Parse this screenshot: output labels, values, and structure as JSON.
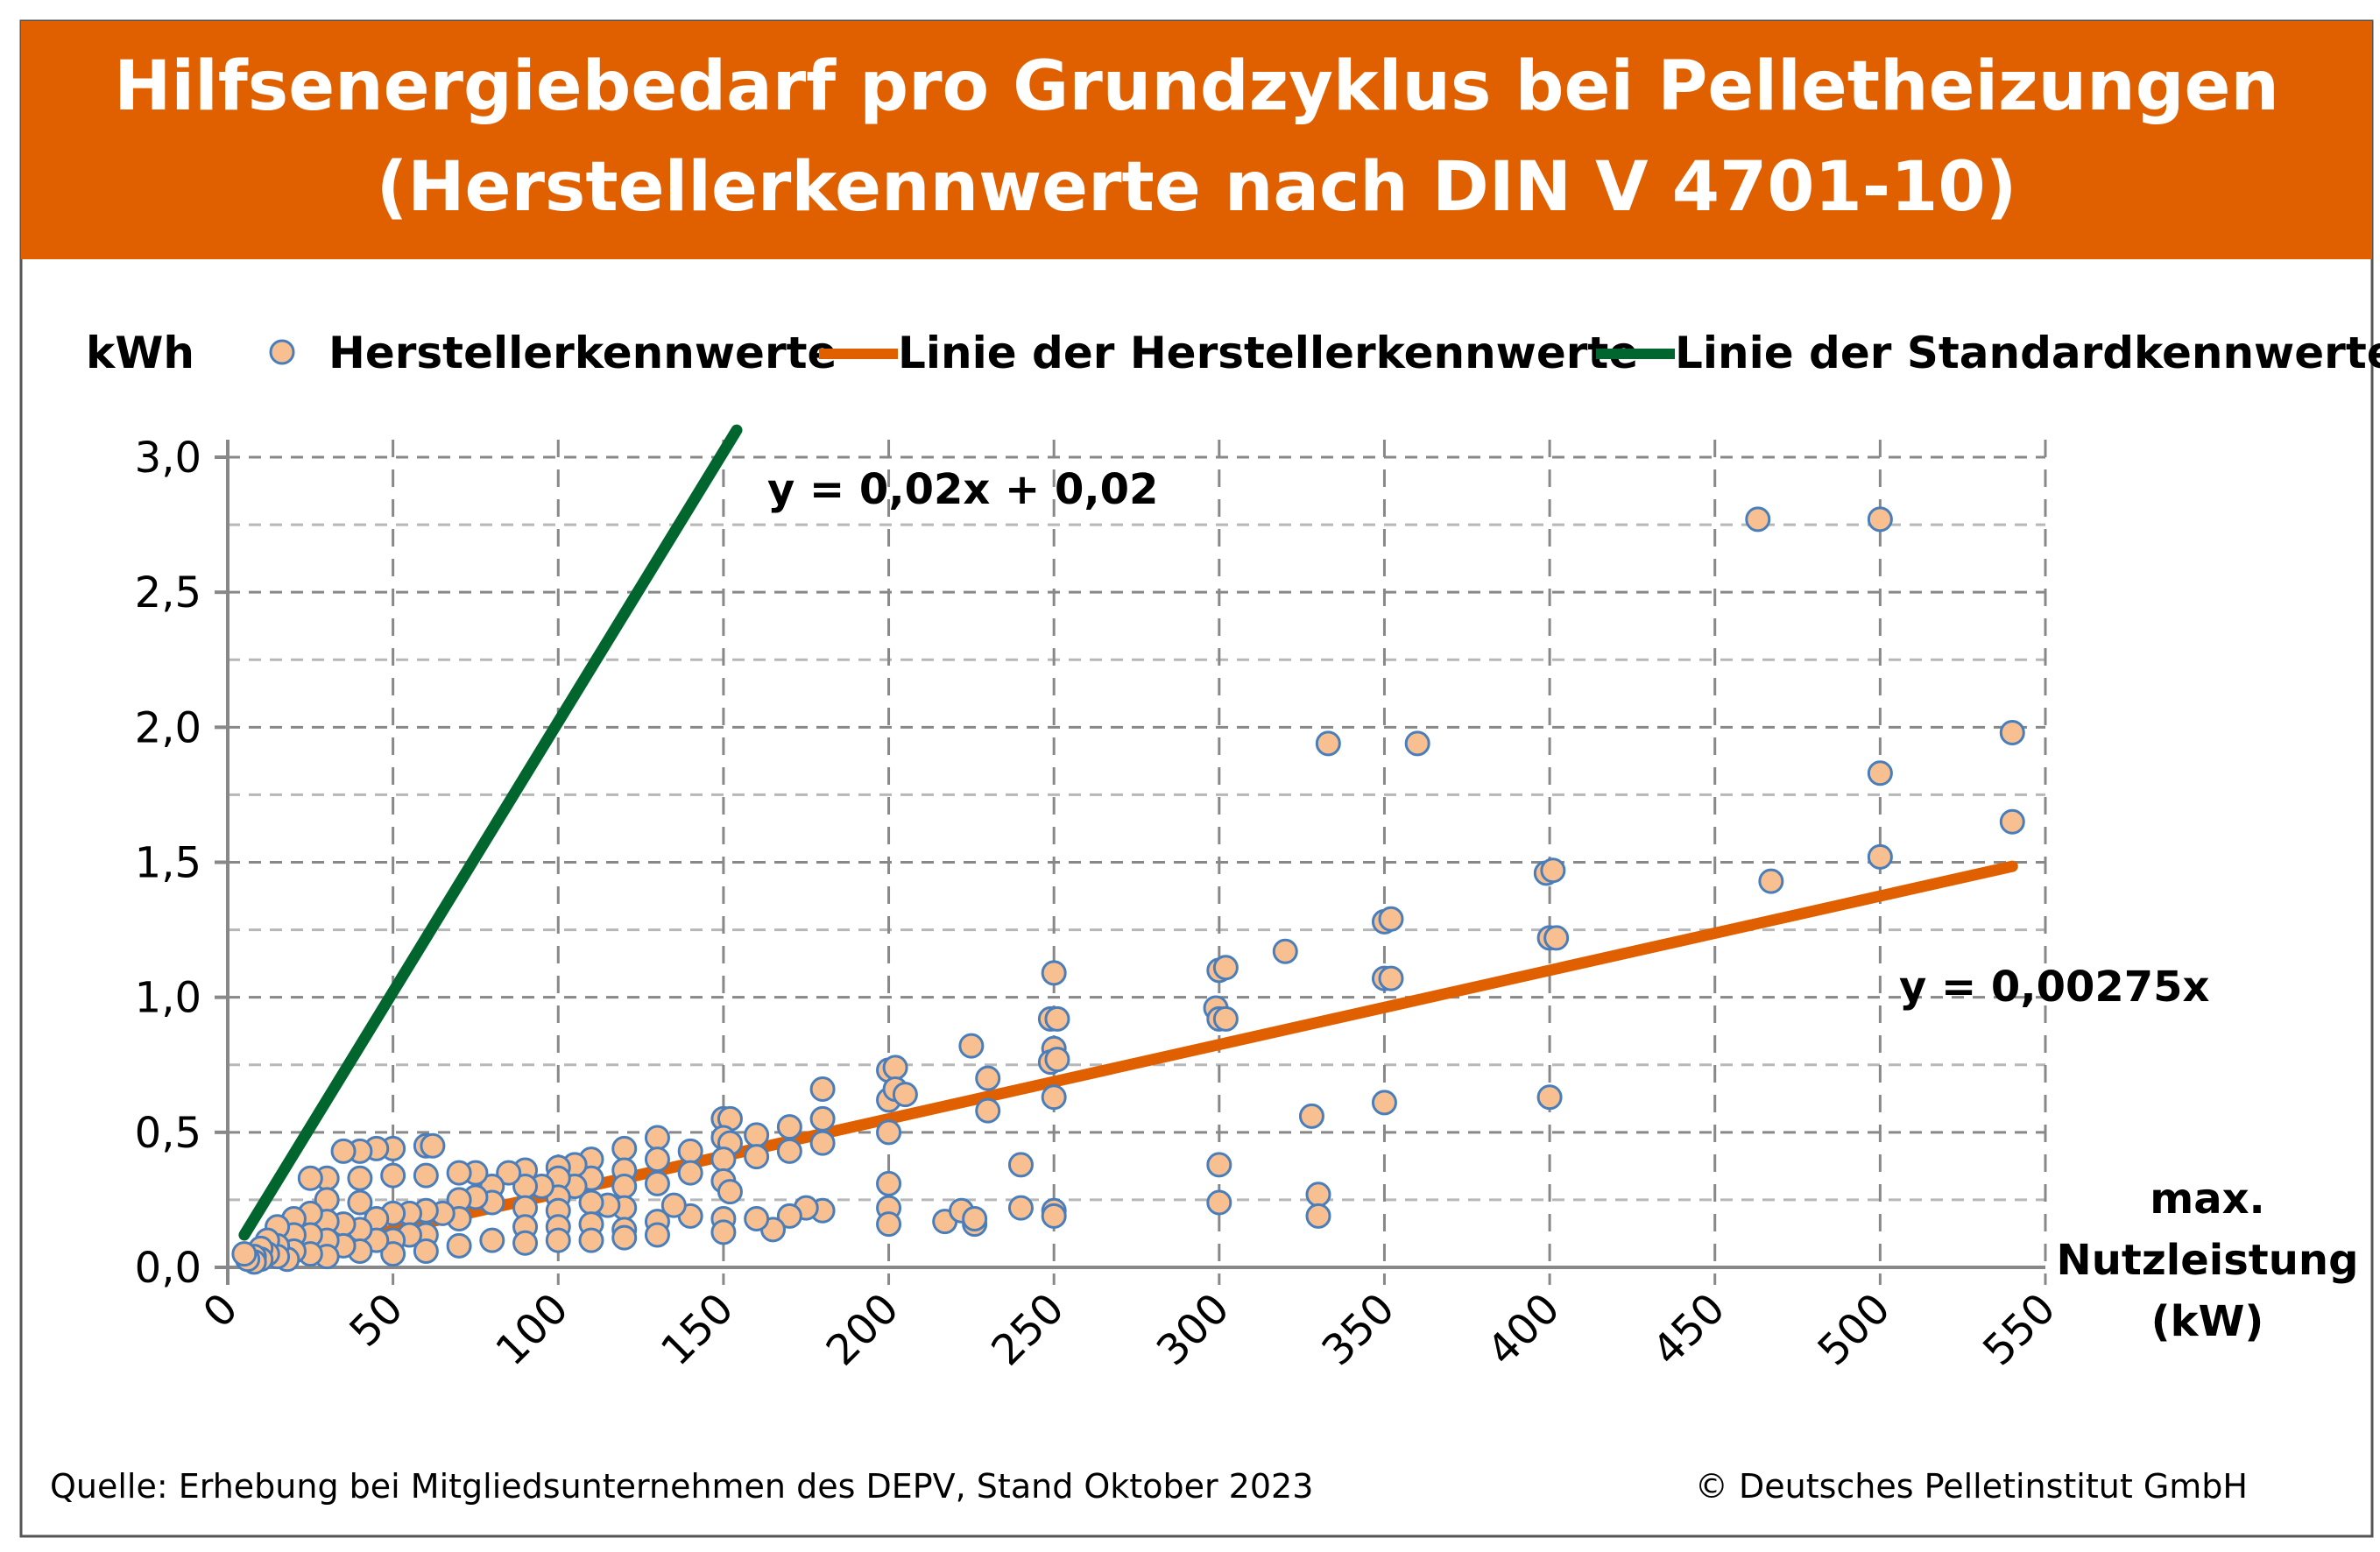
{
  "chart_data": {
    "type": "scatter",
    "title_line1": "Hilfsenergiebedarf pro Grundzyklus bei Pelletheizungen",
    "title_line2": "(Herstellerkennwerte nach DIN V 4701-10)",
    "ylabel": "kWh",
    "xlabel_lines": [
      "max.",
      "Nutzleistung",
      "(kW)"
    ],
    "xlim": [
      0,
      550
    ],
    "ylim": [
      0,
      3.0
    ],
    "x_ticks": [
      0,
      50,
      100,
      150,
      200,
      250,
      300,
      350,
      400,
      450,
      500,
      550
    ],
    "x_tick_labels": [
      "0",
      "50",
      "100",
      "150",
      "200",
      "250",
      "300",
      "350",
      "400",
      "450",
      "500",
      "550"
    ],
    "y_ticks": [
      0,
      0.5,
      1.0,
      1.5,
      2.0,
      2.5,
      3.0
    ],
    "y_tick_labels": [
      "0,0",
      "0,5",
      "1,0",
      "1,5",
      "2,0",
      "2,5",
      "3,0"
    ],
    "grid": true,
    "legend_position": "top",
    "legend": [
      "Herstellerkennwerte",
      "Linie der Herstellerkennwerte",
      "Linie der Standardkennwerte"
    ],
    "colors": {
      "title_bg": "#E06000",
      "points_fill": "#F8C090",
      "points_stroke": "#4A7EBB",
      "manufacturer_line": "#E06000",
      "standard_line": "#00662E",
      "grid": "#888888"
    },
    "annotations": {
      "standard_eq": "y = 0,02x + 0,02",
      "manufacturer_eq": "y = 0,00275x"
    },
    "lines": {
      "manufacturer": {
        "slope": 0.00275,
        "intercept": 0,
        "x_range": [
          5,
          540
        ]
      },
      "standard": {
        "slope": 0.02,
        "intercept": 0.02,
        "x_range": [
          5,
          154
        ]
      }
    },
    "points": [
      [
        463,
        2.77
      ],
      [
        500,
        2.77
      ],
      [
        333,
        1.94
      ],
      [
        360,
        1.94
      ],
      [
        540,
        1.98
      ],
      [
        500,
        1.83
      ],
      [
        540,
        1.65
      ],
      [
        500,
        1.52
      ],
      [
        467,
        1.43
      ],
      [
        399,
        1.46
      ],
      [
        401,
        1.47
      ],
      [
        400,
        1.22
      ],
      [
        402,
        1.22
      ],
      [
        350,
        1.28
      ],
      [
        352,
        1.29
      ],
      [
        350,
        1.07
      ],
      [
        352,
        1.07
      ],
      [
        320,
        1.17
      ],
      [
        300,
        1.1
      ],
      [
        302,
        1.11
      ],
      [
        299,
        0.96
      ],
      [
        300,
        0.92
      ],
      [
        302,
        0.92
      ],
      [
        250,
        1.09
      ],
      [
        249,
        0.92
      ],
      [
        251,
        0.92
      ],
      [
        250,
        0.81
      ],
      [
        249,
        0.76
      ],
      [
        251,
        0.77
      ],
      [
        250,
        0.63
      ],
      [
        225,
        0.82
      ],
      [
        230,
        0.7
      ],
      [
        230,
        0.58
      ],
      [
        200,
        0.73
      ],
      [
        202,
        0.74
      ],
      [
        200,
        0.62
      ],
      [
        202,
        0.66
      ],
      [
        205,
        0.64
      ],
      [
        200,
        0.5
      ],
      [
        350,
        0.61
      ],
      [
        400,
        0.63
      ],
      [
        328,
        0.56
      ],
      [
        300,
        0.38
      ],
      [
        300,
        0.24
      ],
      [
        330,
        0.27
      ],
      [
        330,
        0.19
      ],
      [
        240,
        0.38
      ],
      [
        240,
        0.22
      ],
      [
        250,
        0.21
      ],
      [
        250,
        0.19
      ],
      [
        200,
        0.31
      ],
      [
        200,
        0.22
      ],
      [
        200,
        0.16
      ],
      [
        217,
        0.17
      ],
      [
        222,
        0.21
      ],
      [
        226,
        0.16
      ],
      [
        226,
        0.18
      ],
      [
        180,
        0.66
      ],
      [
        180,
        0.55
      ],
      [
        180,
        0.46
      ],
      [
        180,
        0.21
      ],
      [
        175,
        0.22
      ],
      [
        170,
        0.52
      ],
      [
        170,
        0.43
      ],
      [
        170,
        0.19
      ],
      [
        165,
        0.14
      ],
      [
        160,
        0.49
      ],
      [
        160,
        0.41
      ],
      [
        160,
        0.18
      ],
      [
        150,
        0.55
      ],
      [
        152,
        0.55
      ],
      [
        150,
        0.48
      ],
      [
        152,
        0.46
      ],
      [
        150,
        0.4
      ],
      [
        150,
        0.32
      ],
      [
        152,
        0.28
      ],
      [
        150,
        0.18
      ],
      [
        150,
        0.13
      ],
      [
        140,
        0.43
      ],
      [
        140,
        0.35
      ],
      [
        140,
        0.19
      ],
      [
        135,
        0.23
      ],
      [
        130,
        0.48
      ],
      [
        130,
        0.4
      ],
      [
        130,
        0.31
      ],
      [
        130,
        0.17
      ],
      [
        130,
        0.12
      ],
      [
        120,
        0.44
      ],
      [
        120,
        0.36
      ],
      [
        120,
        0.3
      ],
      [
        120,
        0.22
      ],
      [
        120,
        0.14
      ],
      [
        120,
        0.11
      ],
      [
        115,
        0.23
      ],
      [
        110,
        0.4
      ],
      [
        110,
        0.33
      ],
      [
        110,
        0.24
      ],
      [
        110,
        0.16
      ],
      [
        110,
        0.1
      ],
      [
        105,
        0.38
      ],
      [
        105,
        0.3
      ],
      [
        100,
        0.37
      ],
      [
        100,
        0.33
      ],
      [
        100,
        0.26
      ],
      [
        100,
        0.21
      ],
      [
        100,
        0.15
      ],
      [
        100,
        0.1
      ],
      [
        95,
        0.3
      ],
      [
        90,
        0.36
      ],
      [
        90,
        0.3
      ],
      [
        90,
        0.22
      ],
      [
        90,
        0.15
      ],
      [
        90,
        0.09
      ],
      [
        85,
        0.35
      ],
      [
        80,
        0.3
      ],
      [
        80,
        0.24
      ],
      [
        80,
        0.1
      ],
      [
        75,
        0.35
      ],
      [
        75,
        0.26
      ],
      [
        70,
        0.35
      ],
      [
        70,
        0.25
      ],
      [
        70,
        0.18
      ],
      [
        70,
        0.08
      ],
      [
        65,
        0.2
      ],
      [
        60,
        0.45
      ],
      [
        62,
        0.45
      ],
      [
        60,
        0.34
      ],
      [
        60,
        0.21
      ],
      [
        60,
        0.12
      ],
      [
        60,
        0.06
      ],
      [
        55,
        0.2
      ],
      [
        55,
        0.12
      ],
      [
        50,
        0.44
      ],
      [
        45,
        0.44
      ],
      [
        50,
        0.34
      ],
      [
        50,
        0.2
      ],
      [
        50,
        0.1
      ],
      [
        50,
        0.05
      ],
      [
        45,
        0.18
      ],
      [
        45,
        0.1
      ],
      [
        40,
        0.43
      ],
      [
        35,
        0.43
      ],
      [
        40,
        0.33
      ],
      [
        40,
        0.24
      ],
      [
        40,
        0.14
      ],
      [
        40,
        0.06
      ],
      [
        35,
        0.16
      ],
      [
        35,
        0.08
      ],
      [
        30,
        0.33
      ],
      [
        30,
        0.25
      ],
      [
        30,
        0.17
      ],
      [
        30,
        0.1
      ],
      [
        30,
        0.04
      ],
      [
        25,
        0.33
      ],
      [
        25,
        0.2
      ],
      [
        25,
        0.12
      ],
      [
        25,
        0.05
      ],
      [
        20,
        0.18
      ],
      [
        20,
        0.12
      ],
      [
        20,
        0.06
      ],
      [
        18,
        0.03
      ],
      [
        15,
        0.15
      ],
      [
        15,
        0.08
      ],
      [
        15,
        0.04
      ],
      [
        12,
        0.1
      ],
      [
        12,
        0.05
      ],
      [
        10,
        0.07
      ],
      [
        10,
        0.03
      ],
      [
        8,
        0.04
      ],
      [
        8,
        0.02
      ],
      [
        6,
        0.03
      ],
      [
        5,
        0.05
      ]
    ]
  },
  "footer": {
    "source": "Quelle: Erhebung bei  Mitgliedsunternehmen des DEPV, Stand Oktober 2023",
    "copyright": "© Deutsches Pelletinstitut GmbH"
  }
}
